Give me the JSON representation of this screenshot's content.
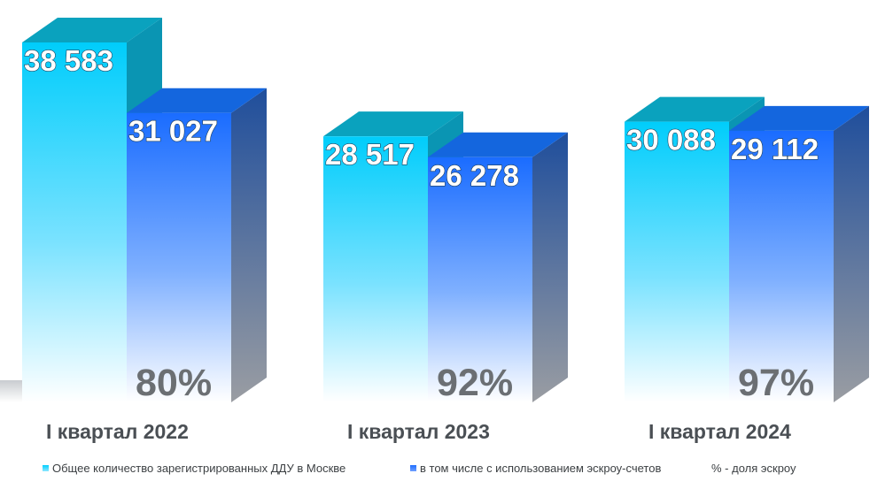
{
  "chart_data": {
    "type": "bar",
    "categories": [
      "I квартал 2022",
      "I квартал 2023",
      "I квартал 2024"
    ],
    "series": [
      {
        "name": "Общее количество зарегистрированных ДДУ в Москве",
        "values": [
          38583,
          28517,
          30088
        ],
        "labels": [
          "38 583",
          "28 517",
          "30 088"
        ],
        "color": "#00cfff"
      },
      {
        "name": "в том числе с использованием эскроу-счетов",
        "values": [
          31027,
          26278,
          29112
        ],
        "labels": [
          "31 027",
          "26 278",
          "29 112"
        ],
        "color": "#1f6fff"
      }
    ],
    "escrow_share": [
      "80%",
      "92%",
      "97%"
    ],
    "legend_note": "% - доля эскроу",
    "legend_position": "bottom",
    "grid": false,
    "ylim": [
      0,
      40000
    ]
  }
}
